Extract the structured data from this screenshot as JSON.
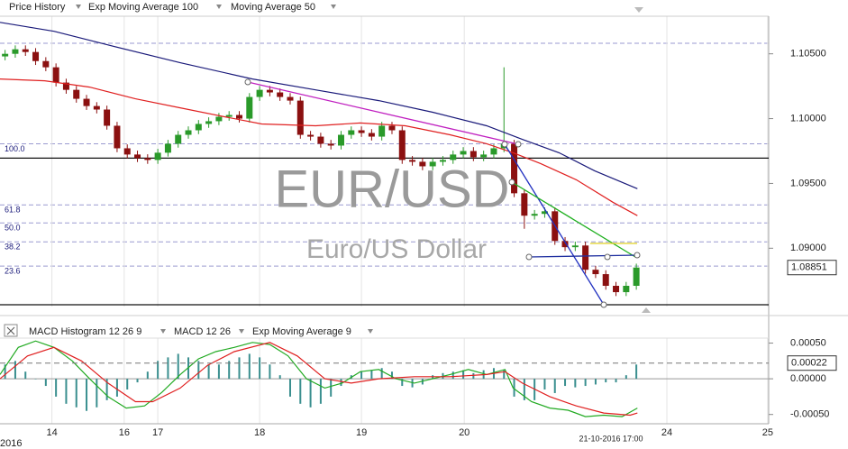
{
  "chart_data": [
    {
      "type": "candlestick",
      "name": "Price History",
      "legend_color": "#1a6a1a",
      "up_color": "#2a9a2a",
      "down_color": "#8b1010",
      "watermark": "EUR/USD",
      "watermark_subtitle": "Euro/US Dollar",
      "xlim": [
        0,
        7.55
      ],
      "ylim": [
        1.0855,
        1.1079
      ],
      "yticks": [
        {
          "value": 1.105,
          "label": "1.10500"
        },
        {
          "value": 1.1,
          "label": "1.10000"
        },
        {
          "value": 1.095,
          "label": "1.09500"
        },
        {
          "value": 1.09,
          "label": "1.09000"
        }
      ],
      "levels": [
        {
          "value": 1.09806,
          "label": "100.0"
        },
        {
          "value": 1.09334,
          "label": "61.8"
        },
        {
          "value": 1.09195,
          "label": "50.0"
        },
        {
          "value": 1.09049,
          "label": "38.2"
        },
        {
          "value": 1.08862,
          "label": "23.6"
        }
      ],
      "dashed_lines": [
        1.10581
      ],
      "hlines": [
        1.09695,
        1.08564
      ],
      "x": [
        0.05,
        0.15,
        0.25,
        0.35,
        0.45,
        0.55,
        0.65,
        0.75,
        0.85,
        0.95,
        1.05,
        1.15,
        1.25,
        1.35,
        1.45,
        1.55,
        1.65,
        1.75,
        1.85,
        1.95,
        2.05,
        2.15,
        2.25,
        2.35,
        2.45,
        2.55,
        2.65,
        2.75,
        2.85,
        2.95,
        3.05,
        3.15,
        3.25,
        3.35,
        3.45,
        3.55,
        3.65,
        3.75,
        3.85,
        3.95,
        4.05,
        4.15,
        4.25,
        4.35,
        4.45,
        4.55,
        4.65,
        4.75,
        4.85,
        4.95,
        5.05,
        5.15,
        5.25,
        5.35,
        5.45,
        5.55,
        5.65,
        5.75,
        5.85,
        5.95,
        6.05,
        6.15,
        6.25
      ],
      "open": [
        1.1048,
        1.105,
        1.10535,
        1.10514,
        1.10444,
        1.10396,
        1.10278,
        1.10222,
        1.10153,
        1.10097,
        1.1007,
        1.09945,
        1.09771,
        1.09723,
        1.09695,
        1.09681,
        1.09737,
        1.09806,
        1.09875,
        1.0991,
        1.09959,
        1.0998,
        1.10014,
        1.10028,
        1.1,
        1.10167,
        1.10222,
        1.10202,
        1.10167,
        1.10139,
        1.09875,
        1.09861,
        1.09806,
        1.09792,
        1.09875,
        1.0991,
        1.09889,
        1.09861,
        1.09945,
        1.0991,
        1.09681,
        1.09667,
        1.09632,
        1.09667,
        1.09681,
        1.09723,
        1.0975,
        1.09702,
        1.09723,
        1.09771,
        1.09806,
        1.09424,
        1.09251,
        1.09265,
        1.09285,
        1.09056,
        1.09008,
        1.09021,
        1.08834,
        1.088,
        1.0871,
        1.08661,
        1.0871
      ],
      "high": [
        1.1053,
        1.10565,
        1.10565,
        1.10544,
        1.10474,
        1.10426,
        1.10308,
        1.10252,
        1.10183,
        1.10127,
        1.101,
        1.09975,
        1.09801,
        1.09753,
        1.09725,
        1.09767,
        1.09836,
        1.09905,
        1.0994,
        1.09989,
        1.1001,
        1.10044,
        1.10058,
        1.10058,
        1.10197,
        1.10252,
        1.10252,
        1.10232,
        1.10197,
        1.10169,
        1.09905,
        1.09891,
        1.09836,
        1.09905,
        1.0994,
        1.0994,
        1.09919,
        1.09975,
        1.09975,
        1.0994,
        1.09711,
        1.09697,
        1.09697,
        1.09711,
        1.09753,
        1.0978,
        1.0978,
        1.09753,
        1.09801,
        1.10396,
        1.09836,
        1.09454,
        1.09295,
        1.09315,
        1.09315,
        1.09086,
        1.09051,
        1.09051,
        1.08864,
        1.0883,
        1.0874,
        1.0874,
        1.08881
      ],
      "low": [
        1.1045,
        1.1047,
        1.10484,
        1.10414,
        1.10366,
        1.10248,
        1.10192,
        1.10123,
        1.10067,
        1.1004,
        1.09915,
        1.09741,
        1.09693,
        1.09665,
        1.09651,
        1.09651,
        1.09707,
        1.09776,
        1.09845,
        1.0988,
        1.09929,
        1.0995,
        1.09984,
        1.0997,
        1.0997,
        1.10137,
        1.10172,
        1.10137,
        1.10109,
        1.09845,
        1.09831,
        1.09776,
        1.09762,
        1.09762,
        1.09845,
        1.09859,
        1.09831,
        1.09831,
        1.0988,
        1.09651,
        1.09637,
        1.09602,
        1.09602,
        1.09637,
        1.09651,
        1.09693,
        1.09672,
        1.09672,
        1.09693,
        1.09741,
        1.09394,
        1.0915,
        1.09221,
        1.09235,
        1.09026,
        1.08978,
        1.08978,
        1.08804,
        1.0877,
        1.0868,
        1.08631,
        1.08631,
        1.0868
      ],
      "close": [
        1.105,
        1.10535,
        1.10514,
        1.10444,
        1.10396,
        1.10278,
        1.10222,
        1.10153,
        1.10097,
        1.1007,
        1.09945,
        1.09771,
        1.09723,
        1.09695,
        1.09681,
        1.09737,
        1.09806,
        1.09875,
        1.0991,
        1.09959,
        1.0998,
        1.10014,
        1.10028,
        1.1,
        1.10167,
        1.10222,
        1.10202,
        1.10167,
        1.10139,
        1.09875,
        1.09861,
        1.09806,
        1.09792,
        1.09875,
        1.0991,
        1.09889,
        1.09861,
        1.09945,
        1.0991,
        1.09681,
        1.09667,
        1.09632,
        1.09667,
        1.09681,
        1.09723,
        1.0975,
        1.09702,
        1.09723,
        1.09771,
        1.09806,
        1.09424,
        1.09251,
        1.09265,
        1.09285,
        1.09056,
        1.09008,
        1.09021,
        1.08834,
        1.088,
        1.0871,
        1.08661,
        1.0871,
        1.08851
      ],
      "series": [
        {
          "name": "Exp Moving Average 100",
          "color": "#1a1a7a",
          "x": [
            0,
            0.53,
            1.06,
            1.77,
            2.48,
            3.1,
            3.72,
            4.25,
            4.78,
            5.13,
            5.49,
            5.84,
            6.26
          ],
          "values": [
            1.10743,
            1.10674,
            1.10569,
            1.10431,
            1.10306,
            1.10222,
            1.10139,
            1.10049,
            1.09945,
            1.0984,
            1.09737,
            1.09598,
            1.09459
          ]
        },
        {
          "name": "Moving Average 50",
          "color": "#e02020",
          "x": [
            0,
            0.44,
            0.88,
            1.33,
            1.77,
            2.21,
            2.57,
            3.1,
            3.54,
            3.98,
            4.42,
            4.78,
            5.04,
            5.31,
            5.66,
            6.02,
            6.26
          ],
          "values": [
            1.10306,
            1.10292,
            1.10243,
            1.10153,
            1.10083,
            1.10014,
            1.09959,
            1.09945,
            1.09966,
            1.09945,
            1.09875,
            1.09806,
            1.09737,
            1.09653,
            1.09528,
            1.09355,
            1.09251
          ]
        }
      ]
    },
    {
      "type": "macd",
      "xlim": [
        0,
        7.55
      ],
      "ylim": [
        -0.00063,
        0.00057
      ],
      "yticks": [
        {
          "value": 0.0005,
          "label": "0.00050"
        },
        {
          "value": 0,
          "label": "0.00000"
        },
        {
          "value": -0.0005,
          "label": "-0.00050"
        }
      ],
      "xticks": [
        {
          "value": 0.51,
          "label": "14"
        },
        {
          "value": 1.22,
          "label": "16"
        },
        {
          "value": 1.55,
          "label": "17"
        },
        {
          "value": 2.55,
          "label": "18"
        },
        {
          "value": 3.55,
          "label": "19"
        },
        {
          "value": 4.56,
          "label": "20"
        },
        {
          "value": 6.55,
          "label": "24"
        },
        {
          "value": 7.54,
          "label": "25"
        }
      ],
      "year_label": "2016",
      "cursor_label": "21-10-2016 17:00",
      "last_value": 0.00022,
      "histogram": {
        "name": "MACD Histogram 12 26 9",
        "color": "#3a8f8f",
        "x": [
          0.05,
          0.15,
          0.25,
          0.35,
          0.45,
          0.55,
          0.65,
          0.75,
          0.85,
          0.95,
          1.05,
          1.15,
          1.25,
          1.35,
          1.45,
          1.55,
          1.65,
          1.75,
          1.85,
          1.95,
          2.05,
          2.15,
          2.25,
          2.35,
          2.45,
          2.55,
          2.65,
          2.75,
          2.85,
          2.95,
          3.05,
          3.15,
          3.25,
          3.35,
          3.45,
          3.55,
          3.65,
          3.75,
          3.85,
          3.95,
          4.05,
          4.15,
          4.25,
          4.35,
          4.45,
          4.55,
          4.65,
          4.75,
          4.85,
          4.95,
          5.05,
          5.15,
          5.25,
          5.35,
          5.45,
          5.55,
          5.65,
          5.75,
          5.85,
          5.95,
          6.05,
          6.15,
          6.25
        ],
        "values": [
          0.0002,
          0.00025,
          0.0001,
          0,
          -0.0001,
          -0.00025,
          -0.00035,
          -0.0004,
          -0.00045,
          -0.0004,
          -0.0003,
          -0.00025,
          -0.00015,
          -5e-05,
          0.0001,
          0.00025,
          0.0003,
          0.00035,
          0.0003,
          0.00025,
          0.0002,
          0.0002,
          0.00025,
          0.0003,
          0.00035,
          0.0003,
          0.0002,
          5e-05,
          -0.00025,
          -0.00035,
          -0.0004,
          -0.00035,
          -0.00025,
          -0.0001,
          5e-05,
          0.0001,
          0.00012,
          0.00015,
          0.0001,
          -0.0001,
          -0.00012,
          -8e-05,
          5e-05,
          8e-05,
          0.0001,
          0.00012,
          8e-05,
          0.00012,
          0.00015,
          0.00012,
          -0.00025,
          -0.0003,
          -0.0003,
          -0.00015,
          -0.0002,
          -0.0001,
          -0.00012,
          -0.0001,
          -8e-05,
          -5e-05,
          -5e-05,
          5e-05,
          0.0002
        ]
      },
      "series": [
        {
          "name": "MACD 12 26",
          "color": "#22aa22",
          "x": [
            0,
            0.18,
            0.35,
            0.53,
            0.71,
            0.88,
            1.06,
            1.24,
            1.42,
            1.59,
            1.77,
            1.95,
            2.12,
            2.3,
            2.48,
            2.65,
            2.83,
            3.01,
            3.19,
            3.36,
            3.54,
            3.72,
            3.89,
            4.07,
            4.25,
            4.42,
            4.6,
            4.78,
            4.96,
            5.04,
            5.22,
            5.4,
            5.58,
            5.75,
            5.93,
            6.11,
            6.26
          ],
          "values": [
            6e-05,
            0.00044,
            0.00053,
            0.00044,
            0.00025,
            0,
            -0.00025,
            -0.00041,
            -0.00038,
            -0.00019,
            6e-05,
            0.00028,
            0.00038,
            0.00044,
            0.00051,
            0.00048,
            0.00032,
            0,
            -0.00013,
            -6e-05,
            0.0001,
            0.00013,
            0,
            -6e-05,
            0,
            6e-05,
            0.00013,
            6e-05,
            0.00013,
            -0.00013,
            -0.00032,
            -0.00041,
            -0.00044,
            -0.00053,
            -0.00051,
            -0.00053,
            -0.00041
          ]
        },
        {
          "name": "Exp Moving Average 9",
          "color": "#e02020",
          "x": [
            0,
            0.27,
            0.53,
            0.8,
            1.06,
            1.33,
            1.5,
            1.77,
            2.04,
            2.3,
            2.65,
            2.92,
            3.19,
            3.45,
            3.72,
            4.07,
            4.42,
            4.78,
            4.96,
            5.13,
            5.4,
            5.66,
            5.93,
            6.19,
            6.26
          ],
          "values": [
            0,
            0.00032,
            0.00044,
            0.00025,
            -6e-05,
            -0.00032,
            -0.00032,
            -0.00013,
            0.00019,
            0.00038,
            0.00051,
            0.00032,
            0,
            -6e-05,
            0,
            3e-05,
            3e-05,
            6e-05,
            0.0001,
            -6e-05,
            -0.00025,
            -0.00038,
            -0.00048,
            -0.00051,
            -0.00048
          ]
        }
      ]
    }
  ]
}
